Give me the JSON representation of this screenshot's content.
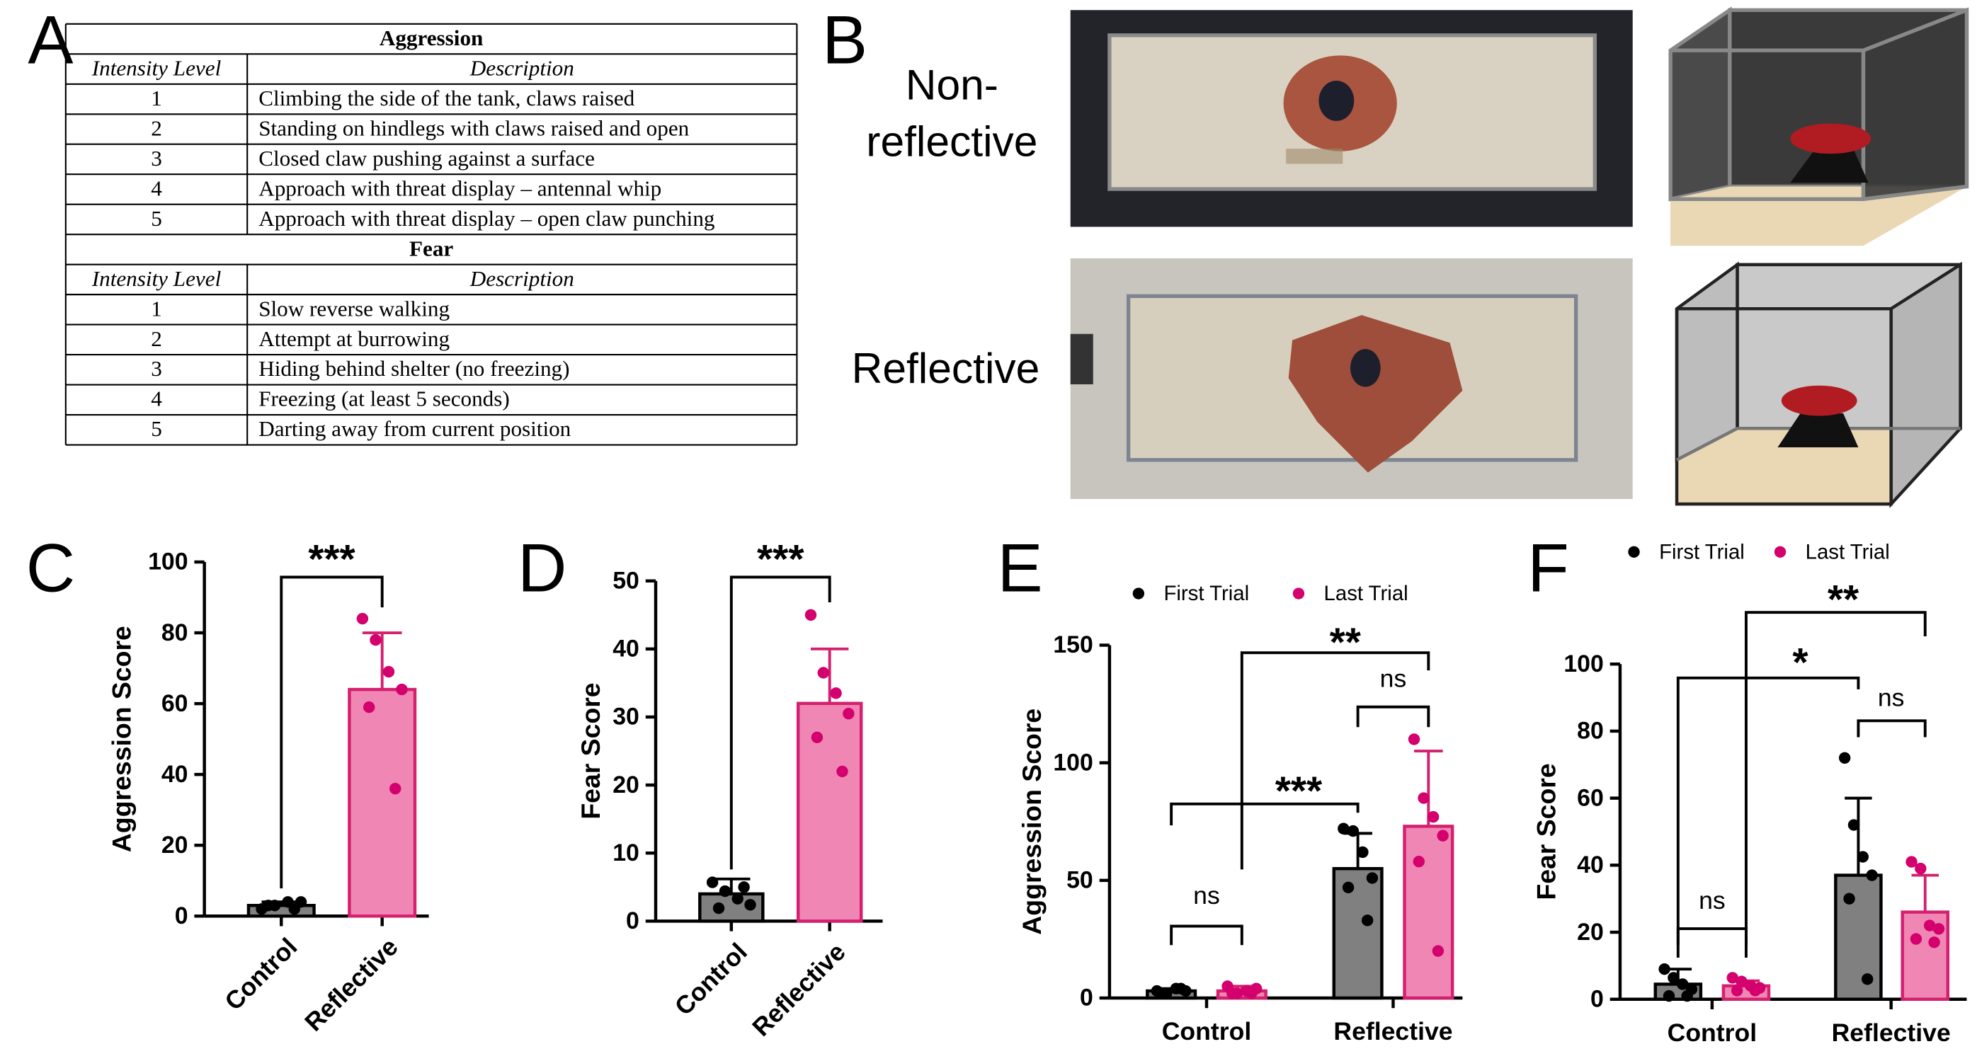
{
  "table": {
    "panel": "A",
    "sections": [
      {
        "title": "Aggression",
        "header": [
          "Intensity Level",
          "Description"
        ],
        "rows": [
          [
            1,
            "Climbing the side of the tank, claws raised"
          ],
          [
            2,
            "Standing on hindlegs with claws raised and open"
          ],
          [
            3,
            "Closed claw pushing against a surface"
          ],
          [
            4,
            "Approach with threat display – antennal whip"
          ],
          [
            5,
            "Approach with threat display – open claw punching"
          ]
        ]
      },
      {
        "title": "Fear",
        "header": [
          "Intensity Level",
          "Description"
        ],
        "rows": [
          [
            1,
            "Slow reverse walking"
          ],
          [
            2,
            "Attempt at burrowing"
          ],
          [
            3,
            "Hiding behind shelter (no freezing)"
          ],
          [
            4,
            "Freezing (at least 5 seconds)"
          ],
          [
            5,
            "Darting away from current position"
          ]
        ]
      }
    ]
  },
  "panel_b": {
    "panel": "B",
    "rows": [
      {
        "label_lines": [
          "Non-",
          "reflective"
        ]
      },
      {
        "label_lines": [
          "Reflective"
        ]
      }
    ]
  },
  "chart_data": [
    {
      "panel": "C",
      "type": "bar",
      "ylabel": "Aggression Score",
      "ylim": [
        0,
        100
      ],
      "yticks": [
        0,
        20,
        40,
        60,
        80,
        100
      ],
      "categories": [
        "Control",
        "Reflective"
      ],
      "series": [
        {
          "colors": [
            "#808080",
            "#ef86b3"
          ],
          "edgecolors": [
            "#000000",
            "#d4206f"
          ],
          "point_colors": [
            "#000000",
            "#d4006e"
          ],
          "values": [
            3,
            64
          ],
          "errors": [
            1,
            16
          ],
          "points": [
            [
              2,
              3,
              4,
              4,
              3,
              2
            ],
            [
              84,
              78,
              69,
              64,
              59,
              36
            ]
          ]
        }
      ],
      "annotations": [
        "***"
      ]
    },
    {
      "panel": "D",
      "type": "bar",
      "ylabel": "Fear Score",
      "ylim": [
        0,
        50
      ],
      "yticks": [
        0,
        10,
        20,
        30,
        40,
        50
      ],
      "categories": [
        "Control",
        "Reflective"
      ],
      "series": [
        {
          "colors": [
            "#808080",
            "#ef86b3"
          ],
          "edgecolors": [
            "#000000",
            "#d4206f"
          ],
          "point_colors": [
            "#000000",
            "#d4006e"
          ],
          "values": [
            4,
            32
          ],
          "errors": [
            2.2,
            8
          ],
          "points": [
            [
              5.7,
              4.4,
              3.3,
              2.4,
              1.9,
              5
            ],
            [
              45,
              36.5,
              33.5,
              30.5,
              27,
              22
            ]
          ]
        }
      ],
      "annotations": [
        "***"
      ]
    },
    {
      "panel": "E",
      "type": "bar",
      "ylabel": "Aggression Score",
      "ylim": [
        0,
        150
      ],
      "yticks": [
        0,
        50,
        100,
        150
      ],
      "categories": [
        "Control",
        "Reflective"
      ],
      "legend": "top",
      "series": [
        {
          "name": "First Trial",
          "color": "#808080",
          "edgecolor": "#000000",
          "point_color": "#000000",
          "values": [
            3,
            55
          ],
          "errors": [
            1,
            15
          ],
          "points": [
            [
              3,
              2,
              4,
              3,
              2,
              4
            ],
            [
              72,
              71,
              62,
              51,
              47,
              33
            ]
          ]
        },
        {
          "name": "Last Trial",
          "color": "#ef86b3",
          "edgecolor": "#d4206f",
          "point_color": "#d4006e",
          "values": [
            3,
            73
          ],
          "errors": [
            2,
            32
          ],
          "points": [
            [
              5,
              2,
              3,
              4,
              2,
              2
            ],
            [
              110,
              85,
              77,
              69,
              58,
              20
            ]
          ]
        }
      ],
      "annotations": [
        "ns",
        "ns",
        "***",
        "**"
      ]
    },
    {
      "panel": "F",
      "type": "bar",
      "ylabel": "Fear Score",
      "ylim": [
        0,
        100
      ],
      "yticks": [
        0,
        20,
        40,
        60,
        80,
        100
      ],
      "categories": [
        "Control",
        "Reflective"
      ],
      "legend": "top",
      "series": [
        {
          "name": "First Trial",
          "color": "#808080",
          "edgecolor": "#000000",
          "point_color": "#000000",
          "values": [
            4.5,
            37
          ],
          "errors": [
            4.5,
            23
          ],
          "points": [
            [
              9,
              6.4,
              4.5,
              3,
              1,
              1
            ],
            [
              72,
              52,
              42.5,
              37,
              30,
              6
            ]
          ]
        },
        {
          "name": "Last Trial",
          "color": "#ef86b3",
          "edgecolor": "#d4206f",
          "point_color": "#d4006e",
          "values": [
            4,
            26
          ],
          "errors": [
            1.5,
            11
          ],
          "points": [
            [
              6.4,
              5.3,
              4,
              3.4,
              2.6,
              2.6
            ],
            [
              41,
              39,
              22,
              21,
              18,
              17
            ]
          ]
        }
      ],
      "annotations": [
        "ns",
        "ns",
        "*",
        "**"
      ]
    }
  ]
}
